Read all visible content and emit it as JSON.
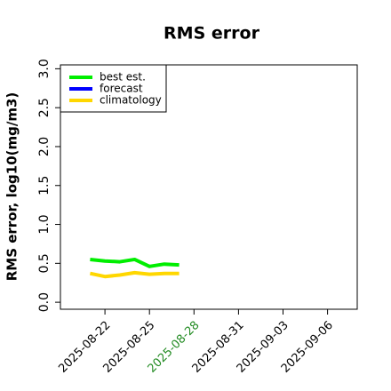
{
  "chart_data": {
    "type": "line",
    "title": "RMS error",
    "ylabel": "RMS error, log10(mg/m3)",
    "x": [
      "2025-08-21",
      "2025-08-22",
      "2025-08-23",
      "2025-08-24",
      "2025-08-25",
      "2025-08-26",
      "2025-08-27"
    ],
    "series": [
      {
        "name": "best est.",
        "color": "#00ee00",
        "values": [
          0.55,
          0.53,
          0.52,
          0.55,
          0.46,
          0.49,
          0.48
        ]
      },
      {
        "name": "forecast",
        "color": "#0000ff",
        "values": [
          null,
          null,
          null,
          null,
          null,
          null,
          null
        ]
      },
      {
        "name": "climatology",
        "color": "#ffd700",
        "values": [
          0.37,
          0.33,
          0.35,
          0.38,
          0.36,
          0.37,
          0.37
        ]
      }
    ],
    "xlim": [
      "2025-08-19",
      "2025-09-08"
    ],
    "xticks": [
      "2025-08-22",
      "2025-08-25",
      "2025-08-28",
      "2025-08-31",
      "2025-09-03",
      "2025-09-06"
    ],
    "xtick_label_colors": [
      "#000000",
      "#000000",
      "#228b22",
      "#000000",
      "#000000",
      "#000000"
    ],
    "ylim": [
      -0.09,
      3.05
    ],
    "yticks": [
      {
        "value": 0,
        "label": "0.0"
      },
      {
        "value": 0.5,
        "label": "0.5"
      },
      {
        "value": 1,
        "label": "1.0"
      },
      {
        "value": 1.5,
        "label": "1.5"
      },
      {
        "value": 2,
        "label": "2.0"
      },
      {
        "value": 2.5,
        "label": "2.5"
      },
      {
        "value": 3,
        "label": "3.0"
      }
    ],
    "legend": "top-left"
  }
}
